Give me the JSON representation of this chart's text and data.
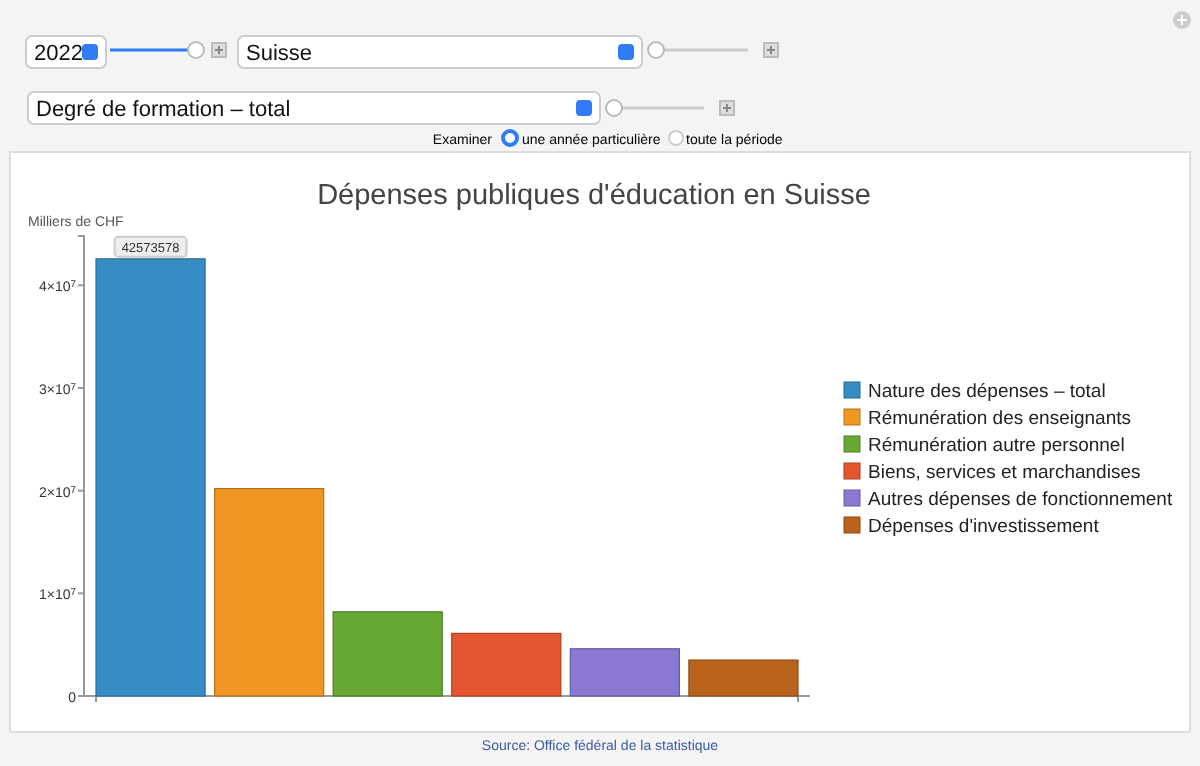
{
  "chart_data": {
    "type": "bar",
    "title": "Dépenses publiques d'éducation en Suisse",
    "ylabel": "Milliers de CHF",
    "categories": [
      null,
      null,
      null,
      null,
      null,
      null
    ],
    "series": [
      {
        "name": "Nature des dépenses – total",
        "color": "#368dc5",
        "values": [
          42573578,
          null,
          null,
          null,
          null,
          null
        ],
        "value_labels": [
          "42573578",
          null,
          null,
          null,
          null,
          null
        ]
      },
      {
        "name": "Rémunération des enseignants",
        "color": "#f09723",
        "values": [
          null,
          20200000,
          null,
          null,
          null,
          null
        ]
      },
      {
        "name": "Rémunération autre personnel",
        "color": "#67a832",
        "values": [
          null,
          null,
          8200000,
          null,
          null,
          null
        ]
      },
      {
        "name": "Biens, services et marchandises",
        "color": "#e4562f",
        "values": [
          null,
          null,
          null,
          6100000,
          null,
          null
        ]
      },
      {
        "name": "Autres dépenses de fonctionnement",
        "color": "#8a78d2",
        "values": [
          null,
          null,
          null,
          null,
          4600000,
          null
        ]
      },
      {
        "name": "Dépenses d'investissement",
        "color": "#b9621c",
        "values": [
          null,
          null,
          null,
          null,
          null,
          3500000
        ]
      }
    ],
    "ylim": [
      0,
      44800000
    ],
    "yticks": [
      0,
      {
        "value": 10000000,
        "label": "1×10$^{7}$"
      },
      {
        "value": 20000000,
        "label": "2×10$^{7}$"
      },
      {
        "value": 30000000,
        "label": "3×10$^{7}$"
      },
      {
        "value": 40000000,
        "label": "4×10$^{7}$"
      }
    ],
    "legend": "right",
    "annotations": [
      "2022",
      "Suisse",
      "Degré de formation – total",
      "Examiner",
      "une année particulière",
      "toute la période",
      "Source: Office fédéral de la statistique"
    ]
  }
}
